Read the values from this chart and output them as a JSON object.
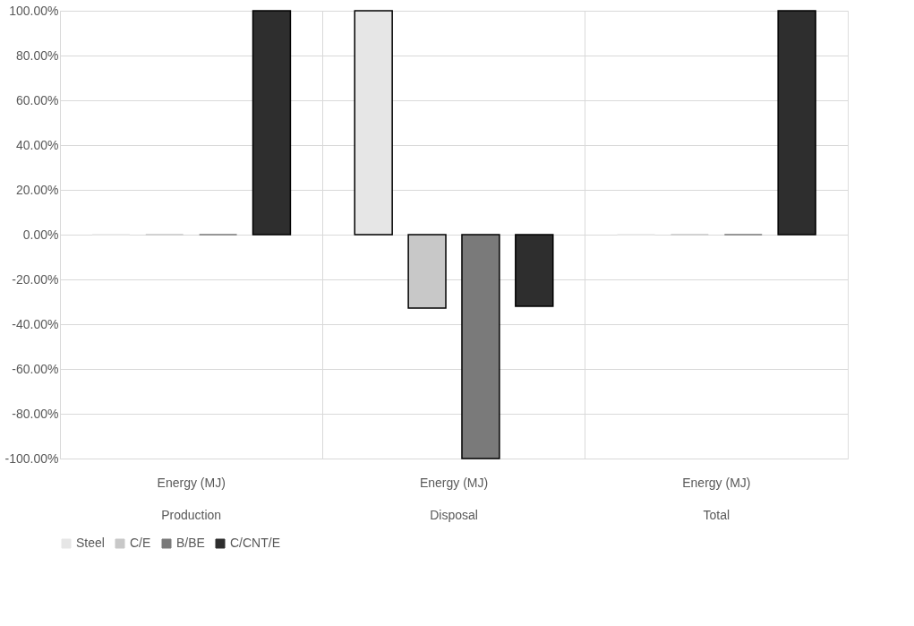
{
  "chart_data": {
    "type": "bar",
    "categories": [
      "Energy (MJ)\nProduction",
      "Energy (MJ)\nDisposal",
      "Energy (MJ)\nTotal"
    ],
    "series": [
      {
        "name": "Steel",
        "color": "#e6e6e6",
        "values": [
          0,
          100,
          0
        ]
      },
      {
        "name": "C/E",
        "color": "#c8c8c8",
        "values": [
          0,
          -32.8,
          0
        ]
      },
      {
        "name": "B/BE",
        "color": "#7a7a7a",
        "values": [
          0,
          -100,
          0
        ]
      },
      {
        "name": "C/CNT/E",
        "color": "#2e2e2e",
        "values": [
          100,
          -32,
          100
        ]
      }
    ],
    "ylim": [
      -100,
      100
    ],
    "yticks": [
      {
        "value": -100,
        "label": "-100.00%"
      },
      {
        "value": -80,
        "label": "-80.00%"
      },
      {
        "value": -60,
        "label": "-60.00%"
      },
      {
        "value": -40,
        "label": "-40.00%"
      },
      {
        "value": -20,
        "label": "-20.00%"
      },
      {
        "value": 0,
        "label": "0.00%"
      },
      {
        "value": 20,
        "label": "20.00%"
      },
      {
        "value": 40,
        "label": "40.00%"
      },
      {
        "value": 60,
        "label": "60.00%"
      },
      {
        "value": 80,
        "label": "80.00%"
      },
      {
        "value": 100,
        "label": "100.00%"
      }
    ],
    "grid": true,
    "legend": "bottom"
  }
}
